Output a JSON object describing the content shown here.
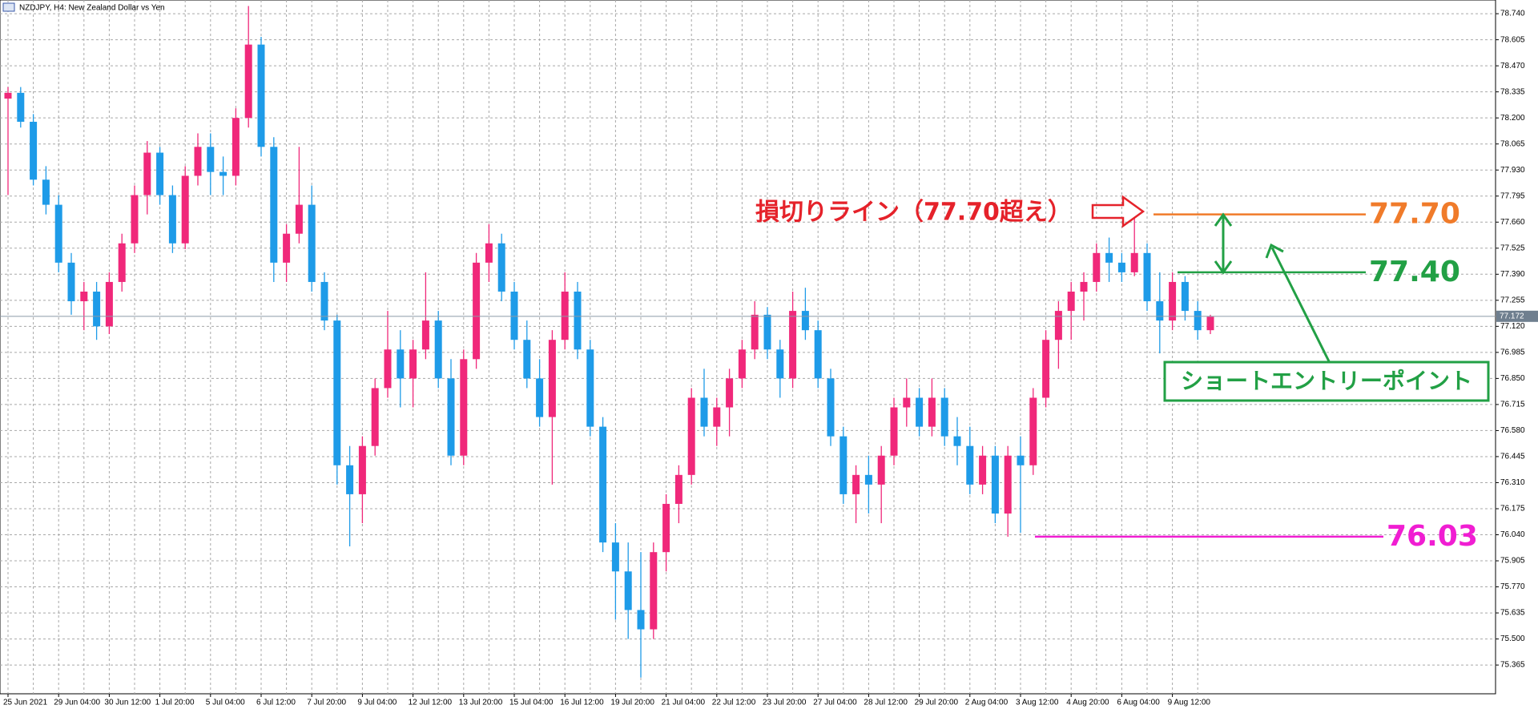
{
  "chart_data": {
    "type": "candlestick",
    "title": "NZDJPY, H4:  New Zealand Dollar vs Yen",
    "up_color": "#f0287a",
    "down_color": "#1e9be8",
    "grid": true,
    "ylim": [
      75.216,
      78.811
    ],
    "yticks": [
      {
        "value": 78.74,
        "label": "78.740"
      },
      78.605,
      {
        "value": 78.47,
        "label": "78.470"
      },
      78.335,
      {
        "value": 78.2,
        "label": "78.200"
      },
      78.065,
      {
        "value": 77.93,
        "label": "77.930"
      },
      77.795,
      {
        "value": 77.66,
        "label": "77.660"
      },
      77.525,
      {
        "value": 77.39,
        "label": "77.390"
      },
      77.255,
      {
        "value": 77.12,
        "label": "77.120"
      },
      76.985,
      {
        "value": 76.85,
        "label": "76.850"
      },
      76.715,
      {
        "value": 76.58,
        "label": "76.580"
      },
      76.445,
      {
        "value": 76.31,
        "label": "76.310"
      },
      76.175,
      {
        "value": 76.04,
        "label": "76.040"
      },
      75.905,
      {
        "value": 75.77,
        "label": "75.770"
      },
      75.635,
      {
        "value": 75.5,
        "label": "75.500"
      },
      75.365
    ],
    "current_price": 77.172,
    "categories": [
      "25 Jun 2021",
      null,
      null,
      null,
      "29 Jun 04:00",
      null,
      null,
      null,
      "30 Jun 12:00",
      null,
      null,
      null,
      "1 Jul 20:00",
      null,
      null,
      null,
      "5 Jul 04:00",
      null,
      null,
      null,
      "6 Jul 12:00",
      null,
      null,
      null,
      "7 Jul 20:00",
      null,
      null,
      null,
      "9 Jul 04:00",
      null,
      null,
      null,
      "12 Jul 12:00",
      null,
      null,
      null,
      "13 Jul 20:00",
      null,
      null,
      null,
      "15 Jul 04:00",
      null,
      null,
      null,
      "16 Jul 12:00",
      null,
      null,
      null,
      "19 Jul 20:00",
      null,
      null,
      null,
      "21 Jul 04:00",
      null,
      null,
      null,
      "22 Jul 12:00",
      null,
      null,
      null,
      "23 Jul 20:00",
      null,
      null,
      null,
      "27 Jul 04:00",
      null,
      null,
      null,
      "28 Jul 12:00",
      null,
      null,
      null,
      "29 Jul 20:00",
      null,
      null,
      null,
      "2 Aug 04:00",
      null,
      null,
      null,
      "3 Aug 12:00",
      null,
      null,
      null,
      "4 Aug 20:00",
      null,
      null,
      null,
      "6 Aug 04:00",
      null,
      null,
      null,
      "9 Aug 12:00",
      null,
      null,
      null
    ],
    "ohlc": [
      [
        78.3,
        78.36,
        77.8,
        78.33
      ],
      [
        78.33,
        78.36,
        78.15,
        78.18
      ],
      [
        78.18,
        78.22,
        77.85,
        77.88
      ],
      [
        77.88,
        77.95,
        77.7,
        77.75
      ],
      [
        77.75,
        77.8,
        77.4,
        77.45
      ],
      [
        77.45,
        77.5,
        77.18,
        77.25
      ],
      [
        77.25,
        77.35,
        77.1,
        77.3
      ],
      [
        77.3,
        77.35,
        77.05,
        77.12
      ],
      [
        77.12,
        77.4,
        77.08,
        77.35
      ],
      [
        77.35,
        77.6,
        77.3,
        77.55
      ],
      [
        77.55,
        77.85,
        77.5,
        77.8
      ],
      [
        77.8,
        78.08,
        77.7,
        78.02
      ],
      [
        78.02,
        78.05,
        77.75,
        77.8
      ],
      [
        77.8,
        77.85,
        77.5,
        77.55
      ],
      [
        77.55,
        77.95,
        77.52,
        77.9
      ],
      [
        77.9,
        78.12,
        77.85,
        78.05
      ],
      [
        78.05,
        78.12,
        77.8,
        77.92
      ],
      [
        77.92,
        78.0,
        77.8,
        77.9
      ],
      [
        77.9,
        78.25,
        77.85,
        78.2
      ],
      [
        78.2,
        78.78,
        78.15,
        78.58
      ],
      [
        78.58,
        78.62,
        78.0,
        78.05
      ],
      [
        78.05,
        78.1,
        77.35,
        77.45
      ],
      [
        77.45,
        77.65,
        77.35,
        77.6
      ],
      [
        77.6,
        78.05,
        77.55,
        77.75
      ],
      [
        77.75,
        77.85,
        77.3,
        77.35
      ],
      [
        77.35,
        77.4,
        77.1,
        77.15
      ],
      [
        77.15,
        77.18,
        76.3,
        76.4
      ],
      [
        76.4,
        76.5,
        75.98,
        76.25
      ],
      [
        76.25,
        76.55,
        76.1,
        76.5
      ],
      [
        76.5,
        76.85,
        76.45,
        76.8
      ],
      [
        76.8,
        77.2,
        76.75,
        77.0
      ],
      [
        77.0,
        77.1,
        76.7,
        76.85
      ],
      [
        76.85,
        77.05,
        76.7,
        77.0
      ],
      [
        77.0,
        77.4,
        76.95,
        77.15
      ],
      [
        77.15,
        77.2,
        76.8,
        76.85
      ],
      [
        76.85,
        76.95,
        76.4,
        76.45
      ],
      [
        76.45,
        77.0,
        76.4,
        76.95
      ],
      [
        76.95,
        77.5,
        76.9,
        77.45
      ],
      [
        77.45,
        77.65,
        77.35,
        77.55
      ],
      [
        77.55,
        77.6,
        77.25,
        77.3
      ],
      [
        77.3,
        77.35,
        77.0,
        77.05
      ],
      [
        77.05,
        77.15,
        76.8,
        76.85
      ],
      [
        76.85,
        76.95,
        76.6,
        76.65
      ],
      [
        76.65,
        77.1,
        76.3,
        77.05
      ],
      [
        77.05,
        77.4,
        77.0,
        77.3
      ],
      [
        77.3,
        77.35,
        76.95,
        77.0
      ],
      [
        77.0,
        77.05,
        76.55,
        76.6
      ],
      [
        76.6,
        76.65,
        75.95,
        76.0
      ],
      [
        76.0,
        76.1,
        75.6,
        75.85
      ],
      [
        75.85,
        76.0,
        75.5,
        75.65
      ],
      [
        75.65,
        75.95,
        75.3,
        75.55
      ],
      [
        75.55,
        76.0,
        75.5,
        75.95
      ],
      [
        75.95,
        76.25,
        75.85,
        76.2
      ],
      [
        76.2,
        76.4,
        76.1,
        76.35
      ],
      [
        76.35,
        76.8,
        76.3,
        76.75
      ],
      [
        76.75,
        76.9,
        76.55,
        76.6
      ],
      [
        76.6,
        76.75,
        76.5,
        76.7
      ],
      [
        76.7,
        76.9,
        76.55,
        76.85
      ],
      [
        76.85,
        77.05,
        76.8,
        77.0
      ],
      [
        77.0,
        77.25,
        76.95,
        77.18
      ],
      [
        77.18,
        77.22,
        76.95,
        77.0
      ],
      [
        77.0,
        77.05,
        76.75,
        76.85
      ],
      [
        76.85,
        77.3,
        76.8,
        77.2
      ],
      [
        77.2,
        77.32,
        77.05,
        77.1
      ],
      [
        77.1,
        77.15,
        76.8,
        76.85
      ],
      [
        76.85,
        76.9,
        76.5,
        76.55
      ],
      [
        76.55,
        76.6,
        76.2,
        76.25
      ],
      [
        76.25,
        76.4,
        76.1,
        76.35
      ],
      [
        76.35,
        76.45,
        76.15,
        76.3
      ],
      [
        76.3,
        76.5,
        76.1,
        76.45
      ],
      [
        76.45,
        76.75,
        76.4,
        76.7
      ],
      [
        76.7,
        76.85,
        76.6,
        76.75
      ],
      [
        76.75,
        76.8,
        76.55,
        76.6
      ],
      [
        76.6,
        76.85,
        76.55,
        76.75
      ],
      [
        76.75,
        76.8,
        76.5,
        76.55
      ],
      [
        76.55,
        76.65,
        76.4,
        76.5
      ],
      [
        76.5,
        76.6,
        76.25,
        76.3
      ],
      [
        76.3,
        76.5,
        76.25,
        76.45
      ],
      [
        76.45,
        76.5,
        76.1,
        76.15
      ],
      [
        76.15,
        76.5,
        76.03,
        76.45
      ],
      [
        76.45,
        76.55,
        76.05,
        76.4
      ],
      [
        76.4,
        76.8,
        76.35,
        76.75
      ],
      [
        76.75,
        77.1,
        76.7,
        77.05
      ],
      [
        77.05,
        77.25,
        76.9,
        77.2
      ],
      [
        77.2,
        77.35,
        77.05,
        77.3
      ],
      [
        77.3,
        77.4,
        77.15,
        77.35
      ],
      [
        77.35,
        77.55,
        77.3,
        77.5
      ],
      [
        77.5,
        77.58,
        77.35,
        77.45
      ],
      [
        77.45,
        77.5,
        77.35,
        77.4
      ],
      [
        77.4,
        77.68,
        77.38,
        77.5
      ],
      [
        77.5,
        77.55,
        77.2,
        77.25
      ],
      [
        77.25,
        77.4,
        76.98,
        77.15
      ],
      [
        77.15,
        77.4,
        77.1,
        77.35
      ],
      [
        77.35,
        77.38,
        77.15,
        77.2
      ],
      [
        77.2,
        77.25,
        77.05,
        77.1
      ],
      [
        77.1,
        77.18,
        77.08,
        77.17
      ]
    ],
    "annotations": {
      "stop_loss_text": "損切りライン（77.70超え）",
      "entry_text": "ショートエントリーポイント"
    },
    "levels": [
      {
        "value": 77.7,
        "label": "77.70",
        "color": "#f07b2a"
      },
      {
        "value": 77.4,
        "label": "77.40",
        "color": "#22a045"
      },
      {
        "value": 76.03,
        "label": "76.03",
        "color": "#f01ed2"
      }
    ]
  }
}
